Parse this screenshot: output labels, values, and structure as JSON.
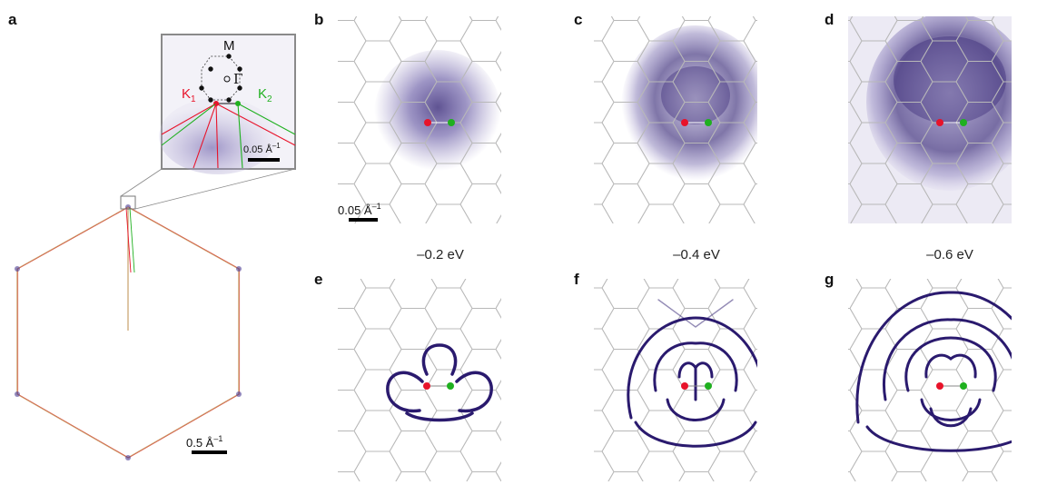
{
  "panels": {
    "a": "a",
    "b": "b",
    "c": "c",
    "d": "d",
    "e": "e",
    "f": "f",
    "g": "g"
  },
  "energies": [
    "–0.2 eV",
    "–0.4 eV",
    "–0.6 eV"
  ],
  "inset": {
    "M": "M",
    "Gamma": "Γ",
    "K1_base": "K",
    "K1_sub": "1",
    "K2_base": "K",
    "K2_sub": "2",
    "scale": "0.05 Å",
    "scale_sup": "–1"
  },
  "scale_b": {
    "text": "0.05 Å",
    "sup": "–1"
  },
  "scale_a": {
    "text": "0.5 Å",
    "sup": "–1"
  },
  "colors": {
    "K1": "#e8132a",
    "K2": "#1fb01f",
    "intensity": "#2a1a6e",
    "grid": "#b8b8b8"
  }
}
